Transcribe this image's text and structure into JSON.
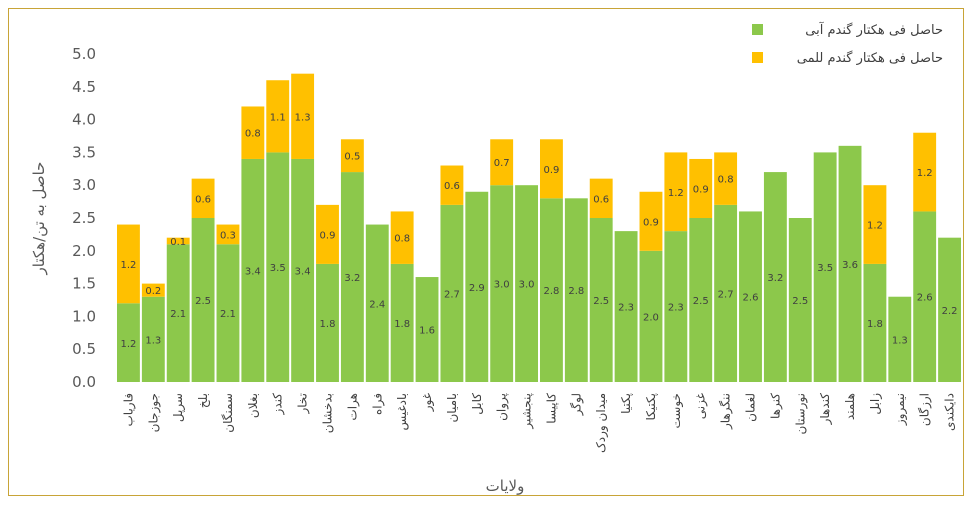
{
  "chart_data": {
    "type": "bar",
    "stacked": true,
    "title": "",
    "xlabel": "ولایات",
    "ylabel": "حاصل به تن/هکتار",
    "ylim": [
      0,
      5.0
    ],
    "yticks": [
      "0.0",
      "0.5",
      "1.0",
      "1.5",
      "2.0",
      "2.5",
      "3.0",
      "3.5",
      "4.0",
      "4.5",
      "5.0"
    ],
    "grid": false,
    "legend_position": "top-right",
    "categories": [
      "فاریاب",
      "جوزجان",
      "سرپل",
      "بلخ",
      "سمنگان",
      "بغلان",
      "کندز",
      "تخار",
      "بدخشان",
      "هرات",
      "فراه",
      "بادغیس",
      "غور",
      "بامیان",
      "کابل",
      "پروان",
      "پنجشیر",
      "کاپیسا",
      "لوگر",
      "میدان وردک",
      "پکتیا",
      "پکتیکا",
      "خوست",
      "غزنی",
      "ننگرهار",
      "لغمان",
      "کنرها",
      "نورستان",
      "کندهار",
      "هلمند",
      "زابل",
      "نیمروز",
      "ارزگان",
      "دایکندی"
    ],
    "series": [
      {
        "name": "حاصل فی هکتار گندم آبی",
        "color": "#8cc84b",
        "values": [
          1.2,
          1.3,
          2.1,
          2.5,
          2.1,
          3.4,
          3.5,
          3.4,
          1.8,
          3.2,
          2.4,
          1.8,
          1.6,
          2.7,
          2.9,
          3.0,
          3.0,
          2.8,
          2.8,
          2.5,
          2.3,
          2.0,
          2.3,
          2.5,
          2.7,
          2.6,
          3.2,
          2.5,
          3.5,
          3.6,
          1.8,
          1.3,
          2.6,
          2.2
        ],
        "labels": [
          "1.2",
          "1.3",
          "2.1",
          "2.5",
          "2.1",
          "3.4",
          "3.5",
          "3.4",
          "1.8",
          "3.2",
          "2.4",
          "1.8",
          "1.6",
          "2.7",
          "2.9",
          "3.0",
          "3.0",
          "2.8",
          "2.8",
          "2.5",
          "2.3",
          "2.0",
          "2.3",
          "2.5",
          "2.7",
          "2.6",
          "3.2",
          "2.5",
          "3.5",
          "3.6",
          "1.8",
          "1.3",
          "2.6",
          "2.2"
        ]
      },
      {
        "name": "حاصل فی هکتار گندم للمی",
        "color": "#ffc000",
        "values": [
          1.2,
          0.2,
          0.1,
          0.6,
          0.3,
          0.8,
          1.1,
          1.3,
          0.9,
          0.5,
          0,
          0.8,
          0,
          0.6,
          0,
          0.7,
          0,
          0.9,
          0,
          0.6,
          0,
          0.9,
          1.2,
          0.9,
          0.8,
          0,
          0,
          0,
          0,
          0,
          1.2,
          0,
          1.2,
          0
        ],
        "labels": [
          "1.2",
          "0.2",
          "0.1",
          "0.6",
          "0.3",
          "0.8",
          "1.1",
          "1.3",
          "0.9",
          "0.5",
          "",
          "0.8",
          "",
          "0.6",
          "",
          "0.7",
          "",
          "0.9",
          "",
          "0.6",
          "",
          "0.9",
          "1.2",
          "0.9",
          "0.8",
          "",
          "",
          "",
          "",
          "",
          "1.2",
          "",
          "1.2",
          ""
        ]
      }
    ]
  }
}
